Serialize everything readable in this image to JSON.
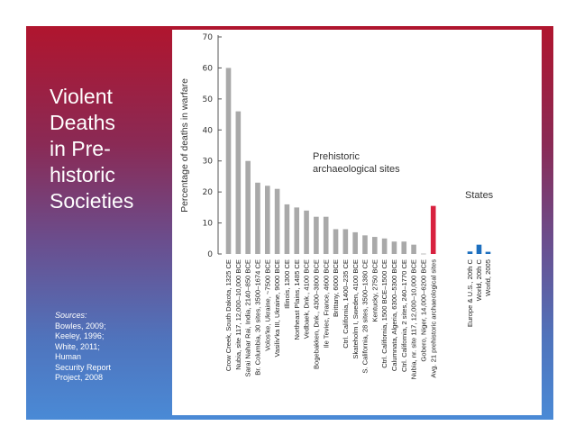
{
  "slide": {
    "title_lines": [
      "Violent",
      "Deaths",
      "in Pre-",
      "historic",
      "Societies"
    ],
    "sources_heading": "Sources:",
    "sources_lines": [
      "Bowles, 2009;",
      "Keeley, 1996;",
      "White, 2011;",
      "Human",
      "Security Report",
      "Project, 2008"
    ]
  },
  "colors": {
    "prehistoric_bar": "#a9a9a9",
    "average_bar": "#d8213f",
    "states_bar": "#1d6fbf",
    "slide_top": "#b0152e",
    "slide_bottom": "#4a8ad6"
  },
  "chart_data": {
    "type": "bar",
    "title": "",
    "xlabel": "",
    "ylabel": "Percentage of deaths in warfare",
    "ylim": [
      0,
      70
    ],
    "yticks": [
      0,
      10,
      20,
      30,
      40,
      50,
      60,
      70
    ],
    "grid": false,
    "annotations": [
      {
        "text_lines": [
          "Prehistoric",
          "archaeological sites"
        ],
        "group": "prehistoric"
      },
      {
        "text_lines": [
          "States"
        ],
        "group": "states"
      }
    ],
    "categories": [
      "Crow Creek, South Dakota, 1325 CE",
      "Nubia, site 117, 12,000–10,000 BCE",
      "Sarai Nahar Rai, India, 2140–850 BCE",
      "Br. Columbia, 30 sites, 3500–1674 CE",
      "Volos'ke, Ukraine, ~7500 BCE",
      "Vasiliv'ka III, Ukraine, 9000 BCE",
      "Illinois, 1300 CE",
      "Northeast Plains, 1485 CE",
      "Vedbaek, Dnk., 4100 BCE",
      "Bogebakken, Dnk., 4300–3800 BCE",
      "Ile Teviec, France, 4600 BCE",
      "Brittany, 6000 BCE",
      "Ctrl. California, 1400–235 CE",
      "Skateholm I, Sweden, 4100 BCE",
      "S. California, 28 sites, 3500–1380 CE",
      "Kentucky, 2750 BCE",
      "Ctrl. California, 1500 BCE–1500 CE",
      "Calumnata, Algeria, 6300–5300 BCE",
      "Ctrl. California, 2 sites, 240–1770 CE",
      "Nubia, nr. site 117, 12,000–10,000 BCE",
      "Gobero, Niger, 14,000–6200 BCE",
      "Avg. 21 prehistoric archaeological sites",
      "Europe & U.S., 20th C",
      "World, 20th C",
      "World, 2005"
    ],
    "series": [
      {
        "name": "Percentage of deaths in warfare",
        "values": [
          60,
          46,
          30,
          23,
          22,
          21,
          16,
          15,
          14,
          12,
          12,
          8,
          8,
          7,
          6,
          5.5,
          5,
          4,
          4,
          3,
          0,
          15.5,
          0.8,
          3,
          0.7
        ],
        "groups": [
          "prehistoric",
          "prehistoric",
          "prehistoric",
          "prehistoric",
          "prehistoric",
          "prehistoric",
          "prehistoric",
          "prehistoric",
          "prehistoric",
          "prehistoric",
          "prehistoric",
          "prehistoric",
          "prehistoric",
          "prehistoric",
          "prehistoric",
          "prehistoric",
          "prehistoric",
          "prehistoric",
          "prehistoric",
          "prehistoric",
          "prehistoric",
          "average",
          "states",
          "states",
          "states"
        ]
      }
    ]
  }
}
